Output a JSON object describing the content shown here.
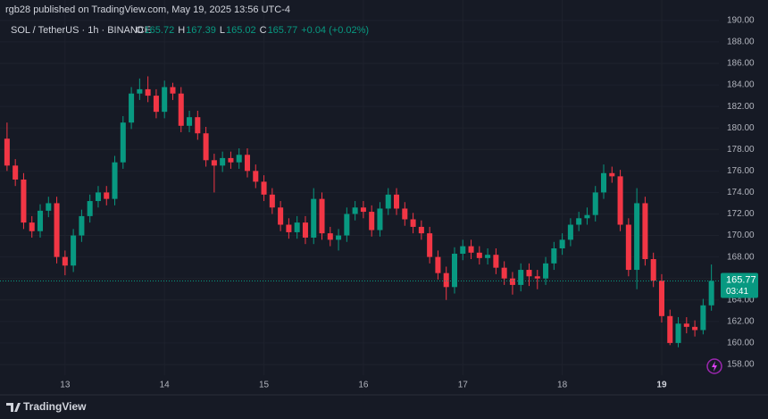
{
  "header": {
    "published": "rgb28 published on TradingView.com, May 19, 2025 13:56 UTC-4",
    "brand": "TradingView"
  },
  "chart_data": {
    "type": "candlestick",
    "symbol": "SOL / TetherUS · 1h · BINANCE",
    "ohlc": [
      {
        "label": "O",
        "value": 165.72
      },
      {
        "label": "H",
        "value": 167.39
      },
      {
        "label": "L",
        "value": 165.02
      },
      {
        "label": "C",
        "value": 165.77
      }
    ],
    "change": "+0.04 (+0.02%)",
    "countdown": "03:41",
    "up_color": "#089981",
    "down_color": "#f23645",
    "x": [
      -14,
      -12,
      -10,
      -8,
      -6,
      -4,
      -2,
      0,
      2,
      4,
      6,
      8,
      10,
      12,
      14,
      16,
      18,
      20,
      22,
      24,
      26,
      28,
      30,
      32,
      34,
      36,
      38,
      40,
      42,
      44,
      46,
      48,
      50,
      52,
      54,
      56,
      58,
      60,
      62,
      64,
      66,
      68,
      70,
      72,
      74,
      76,
      78,
      80,
      82,
      84,
      86,
      88,
      90,
      92,
      94,
      96,
      98,
      100,
      102,
      104,
      106,
      108,
      110,
      112,
      114,
      116,
      118,
      120,
      122,
      124,
      126,
      128,
      130,
      132,
      134,
      136,
      138,
      140,
      142,
      144,
      146,
      148,
      150,
      152,
      154,
      156
    ],
    "open": [
      179,
      176.5,
      175.2,
      171.2,
      170.4,
      172.3,
      173.0,
      168.0,
      167.2,
      170.0,
      171.8,
      173.2,
      174.0,
      173.4,
      176.8,
      180.5,
      183.2,
      183.6,
      183.0,
      181.5,
      183.8,
      183.2,
      180.2,
      181.0,
      179.5,
      177.0,
      176.5,
      177.2,
      176.8,
      177.5,
      176.0,
      175.0,
      173.8,
      172.6,
      171.0,
      170.3,
      171.2,
      169.8,
      173.4,
      170.2,
      169.6,
      170.0,
      172.0,
      172.6,
      172.2,
      170.5,
      172.5,
      173.8,
      172.5,
      171.5,
      170.8,
      170.2,
      168.0,
      166.5,
      165.2,
      168.3,
      169.0,
      168.4,
      167.9,
      168.2,
      167.0,
      166.0,
      165.4,
      166.8,
      166.2,
      166.0,
      167.4,
      168.8,
      169.6,
      171.0,
      171.6,
      171.9,
      174.0,
      175.8,
      175.5,
      171.0,
      166.8,
      173.0,
      167.8,
      165.8,
      162.5,
      160.0,
      161.8,
      161.5,
      161.2,
      163.5
    ],
    "high": [
      180.5,
      177.1,
      175.8,
      171.8,
      172.9,
      173.6,
      173.6,
      168.6,
      170.6,
      172.4,
      173.8,
      174.6,
      174.6,
      177.4,
      181.1,
      183.8,
      184.6,
      184.8,
      183.6,
      184.4,
      184.2,
      183.8,
      181.6,
      181.6,
      180.1,
      177.6,
      177.8,
      177.8,
      178.1,
      178.1,
      176.6,
      175.6,
      174.4,
      173.2,
      171.6,
      171.8,
      171.8,
      174.4,
      174.0,
      170.8,
      170.6,
      172.6,
      173.2,
      173.2,
      172.8,
      173.1,
      174.4,
      174.4,
      173.1,
      172.1,
      171.4,
      170.8,
      168.6,
      167.1,
      168.9,
      169.6,
      169.6,
      169.0,
      168.8,
      168.8,
      167.6,
      166.6,
      167.4,
      167.4,
      166.8,
      168.0,
      169.4,
      170.2,
      171.6,
      172.2,
      172.6,
      174.6,
      176.6,
      176.4,
      176.1,
      171.6,
      174.4,
      173.6,
      168.4,
      166.4,
      163.1,
      162.4,
      162.4,
      162.1,
      164.1,
      167.3
    ],
    "low": [
      176.0,
      174.6,
      170.6,
      169.8,
      169.8,
      171.7,
      167.4,
      166.3,
      166.6,
      169.4,
      171.2,
      172.6,
      172.8,
      172.8,
      176.2,
      179.9,
      182.6,
      182.4,
      180.9,
      180.9,
      182.6,
      179.6,
      179.6,
      178.9,
      176.4,
      174.0,
      175.9,
      176.2,
      176.2,
      175.4,
      174.4,
      173.2,
      172.0,
      170.4,
      169.7,
      169.7,
      169.2,
      169.2,
      169.6,
      169.0,
      168.6,
      169.4,
      171.4,
      171.6,
      169.9,
      169.9,
      171.9,
      171.9,
      170.9,
      170.2,
      169.6,
      167.4,
      165.9,
      164.0,
      164.6,
      167.7,
      167.8,
      167.3,
      167.3,
      166.4,
      165.4,
      164.5,
      164.8,
      165.3,
      165.0,
      165.4,
      166.8,
      168.2,
      169.0,
      170.4,
      171.0,
      171.3,
      173.4,
      174.9,
      170.4,
      166.2,
      165.0,
      167.2,
      165.2,
      161.9,
      159.8,
      159.6,
      160.9,
      160.6,
      160.8,
      163.0
    ],
    "close": [
      176.5,
      175.2,
      171.2,
      170.4,
      172.3,
      173.0,
      168.0,
      167.2,
      170.0,
      171.8,
      173.2,
      174.0,
      173.4,
      176.8,
      180.5,
      183.2,
      183.6,
      183.0,
      181.5,
      183.8,
      183.2,
      180.2,
      181.0,
      179.5,
      177.0,
      176.5,
      177.2,
      176.8,
      177.5,
      176.0,
      175.0,
      173.8,
      172.6,
      171.0,
      170.3,
      171.2,
      169.8,
      173.4,
      170.2,
      169.6,
      170.0,
      172.0,
      172.6,
      172.2,
      170.5,
      172.5,
      173.8,
      172.5,
      171.5,
      170.8,
      170.2,
      168.0,
      166.5,
      165.2,
      168.3,
      169.0,
      168.4,
      167.9,
      168.2,
      167.0,
      166.0,
      165.4,
      166.8,
      166.2,
      166.0,
      167.4,
      168.8,
      169.6,
      171.0,
      171.6,
      171.9,
      174.0,
      175.8,
      175.5,
      171.0,
      166.8,
      173.0,
      167.8,
      165.8,
      162.5,
      160.0,
      161.8,
      161.5,
      161.2,
      163.5,
      165.77
    ],
    "xlim": [
      -15.7,
      157.8
    ],
    "xticks": [
      {
        "value": 0,
        "label": "13"
      },
      {
        "value": 24,
        "label": "14"
      },
      {
        "value": 48,
        "label": "15"
      },
      {
        "value": 72,
        "label": "16"
      },
      {
        "value": 96,
        "label": "17"
      },
      {
        "value": 120,
        "label": "18"
      },
      {
        "value": 144,
        "label": "19"
      }
    ],
    "ylim": [
      157,
      191.9
    ],
    "yticks": [
      {
        "value": 158,
        "label": "158.00"
      },
      {
        "value": 160,
        "label": "160.00"
      },
      {
        "value": 162,
        "label": "162.00"
      },
      {
        "value": 164,
        "label": "164.00"
      },
      {
        "value": 166,
        "label": "166.00"
      },
      {
        "value": 168,
        "label": "168.00"
      },
      {
        "value": 170,
        "label": "170.00"
      },
      {
        "value": 172,
        "label": "172.00"
      },
      {
        "value": 174,
        "label": "174.00"
      },
      {
        "value": 176,
        "label": "176.00"
      },
      {
        "value": 178,
        "label": "178.00"
      },
      {
        "value": 180,
        "label": "180.00"
      },
      {
        "value": 182,
        "label": "182.00"
      },
      {
        "value": 184,
        "label": "184.00"
      },
      {
        "value": 186,
        "label": "186.00"
      },
      {
        "value": 188,
        "label": "188.00"
      },
      {
        "value": 190,
        "label": "190.00"
      }
    ],
    "grid": true
  }
}
